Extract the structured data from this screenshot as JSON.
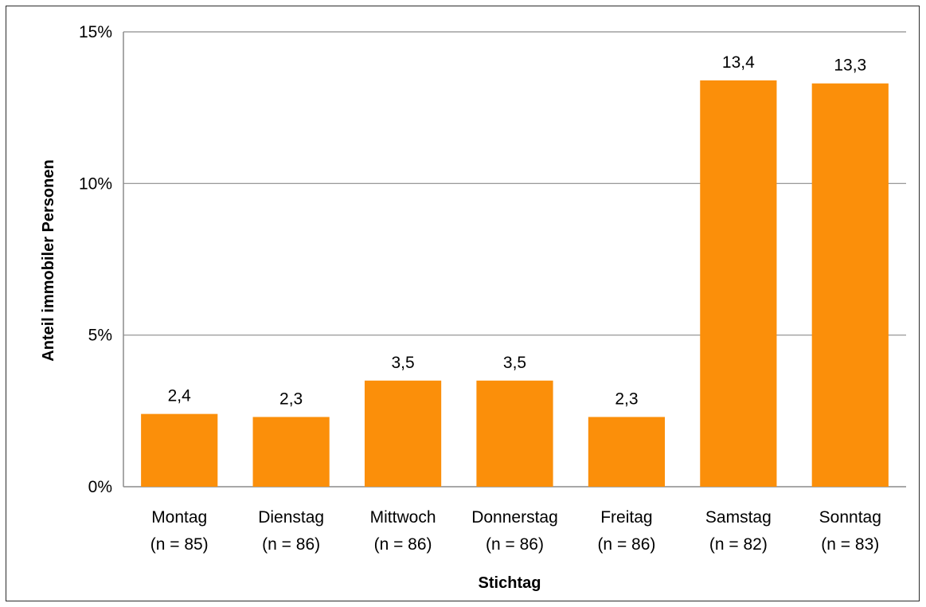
{
  "chart_data": {
    "type": "bar",
    "categories": [
      "Montag",
      "Dienstag",
      "Mittwoch",
      "Donnerstag",
      "Freitag",
      "Samstag",
      "Sonntag"
    ],
    "category_sublabels": [
      "(n = 85)",
      "(n = 86)",
      "(n = 86)",
      "(n = 86)",
      "(n = 86)",
      "(n = 82)",
      "(n = 83)"
    ],
    "values": [
      2.4,
      2.3,
      3.5,
      3.5,
      2.3,
      13.4,
      13.3
    ],
    "data_labels": [
      "2,4",
      "2,3",
      "3,5",
      "3,5",
      "2,3",
      "13,4",
      "13,3"
    ],
    "title": "",
    "xlabel": "Stichtag",
    "ylabel": "Anteil immobiler Personen",
    "ylim": [
      0,
      15
    ],
    "yticks": [
      0,
      5,
      10,
      15
    ],
    "ytick_labels": [
      "0%",
      "5%",
      "10%",
      "15%"
    ],
    "grid": true,
    "legend": "none",
    "bar_color": "#FB8F0A",
    "grid_color": "#8C8C8C"
  }
}
